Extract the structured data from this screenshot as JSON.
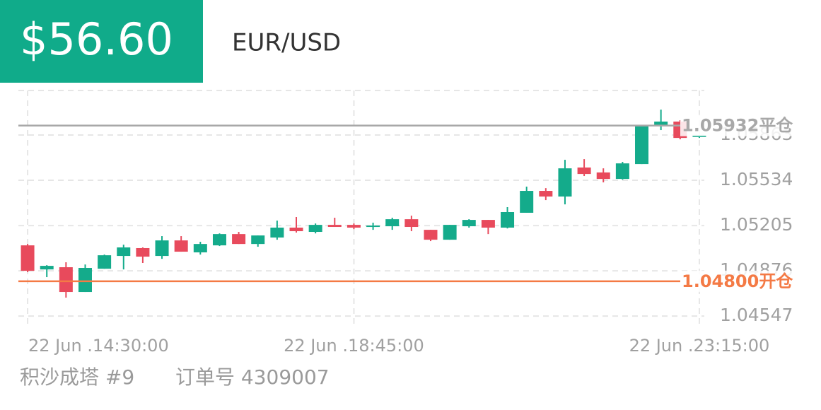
{
  "chart_data": {
    "type": "candlestick",
    "badge": "$56.60",
    "title": "EUR/USD",
    "footer": [
      "积沙成塔 #9",
      "订单号 4309007"
    ],
    "categories": [
      "22 Jun .14:30:00",
      null,
      null,
      null,
      null,
      null,
      null,
      null,
      null,
      null,
      null,
      null,
      null,
      null,
      null,
      null,
      null,
      "22 Jun .18:45:00",
      null,
      null,
      null,
      null,
      null,
      null,
      null,
      null,
      null,
      null,
      null,
      null,
      null,
      null,
      null,
      null,
      null,
      "22 Jun .23:15:00"
    ],
    "open": [
      1.05061,
      1.04886,
      1.04902,
      1.04722,
      1.04891,
      1.04984,
      1.05041,
      1.04984,
      1.05097,
      1.0501,
      1.05061,
      1.05143,
      1.05071,
      1.05118,
      1.0519,
      1.05159,
      1.0521,
      1.0521,
      1.05195,
      1.052,
      1.05251,
      1.05174,
      1.05102,
      1.052,
      1.05246,
      1.0519,
      1.05298,
      1.05457,
      1.05416,
      1.05627,
      1.05591,
      1.05544,
      1.05652,
      1.0593,
      1.05961,
      1.05848
    ],
    "high": [
      1.05071,
      1.04917,
      1.04938,
      1.04922,
      1.04994,
      1.05066,
      1.05046,
      1.05128,
      1.05128,
      1.05087,
      1.05148,
      1.05159,
      1.05133,
      1.05241,
      1.05267,
      1.0522,
      1.05262,
      1.0522,
      1.05226,
      1.05262,
      1.05277,
      1.05174,
      1.0521,
      1.05251,
      1.05246,
      1.05339,
      1.05488,
      1.05477,
      1.05683,
      1.05688,
      1.05621,
      1.05668,
      1.0593,
      1.06048,
      1.05971,
      1.05863
    ],
    "low": [
      1.04866,
      1.0483,
      1.04681,
      1.04722,
      1.04891,
      1.04886,
      1.04933,
      1.04963,
      1.05015,
      1.04994,
      1.05056,
      1.05071,
      1.05051,
      1.05102,
      1.05154,
      1.05148,
      1.05195,
      1.05179,
      1.05174,
      1.05174,
      1.05164,
      1.05092,
      1.05102,
      1.0519,
      1.05143,
      1.05184,
      1.05298,
      1.0539,
      1.05359,
      1.05565,
      1.05519,
      1.05539,
      1.05652,
      1.05899,
      1.05832,
      1.05842
    ],
    "close": [
      1.04876,
      1.04912,
      1.04722,
      1.04897,
      1.04989,
      1.05046,
      1.04979,
      1.05097,
      1.05015,
      1.05071,
      1.05143,
      1.05071,
      1.05133,
      1.0519,
      1.05164,
      1.0521,
      1.05195,
      1.0519,
      1.05205,
      1.05251,
      1.05195,
      1.05102,
      1.0521,
      1.05246,
      1.0519,
      1.05303,
      1.05457,
      1.05416,
      1.05621,
      1.0558,
      1.05544,
      1.05657,
      1.0593,
      1.05961,
      1.05842,
      1.05863
    ],
    "up_color": "#14ab8b",
    "down_color": "#e84a5c",
    "ylim": [
      1.04491,
      1.06187
    ],
    "yticks": [
      1.04547,
      1.04876,
      1.05205,
      1.05534,
      1.05863
    ],
    "grid": true,
    "reference_lines": [
      {
        "value": 1.05932,
        "label": "1.05932平仓",
        "color": "#a8a8a8"
      },
      {
        "value": 1.048,
        "label": "1.04800开仓",
        "color": "#f47a45"
      }
    ]
  }
}
